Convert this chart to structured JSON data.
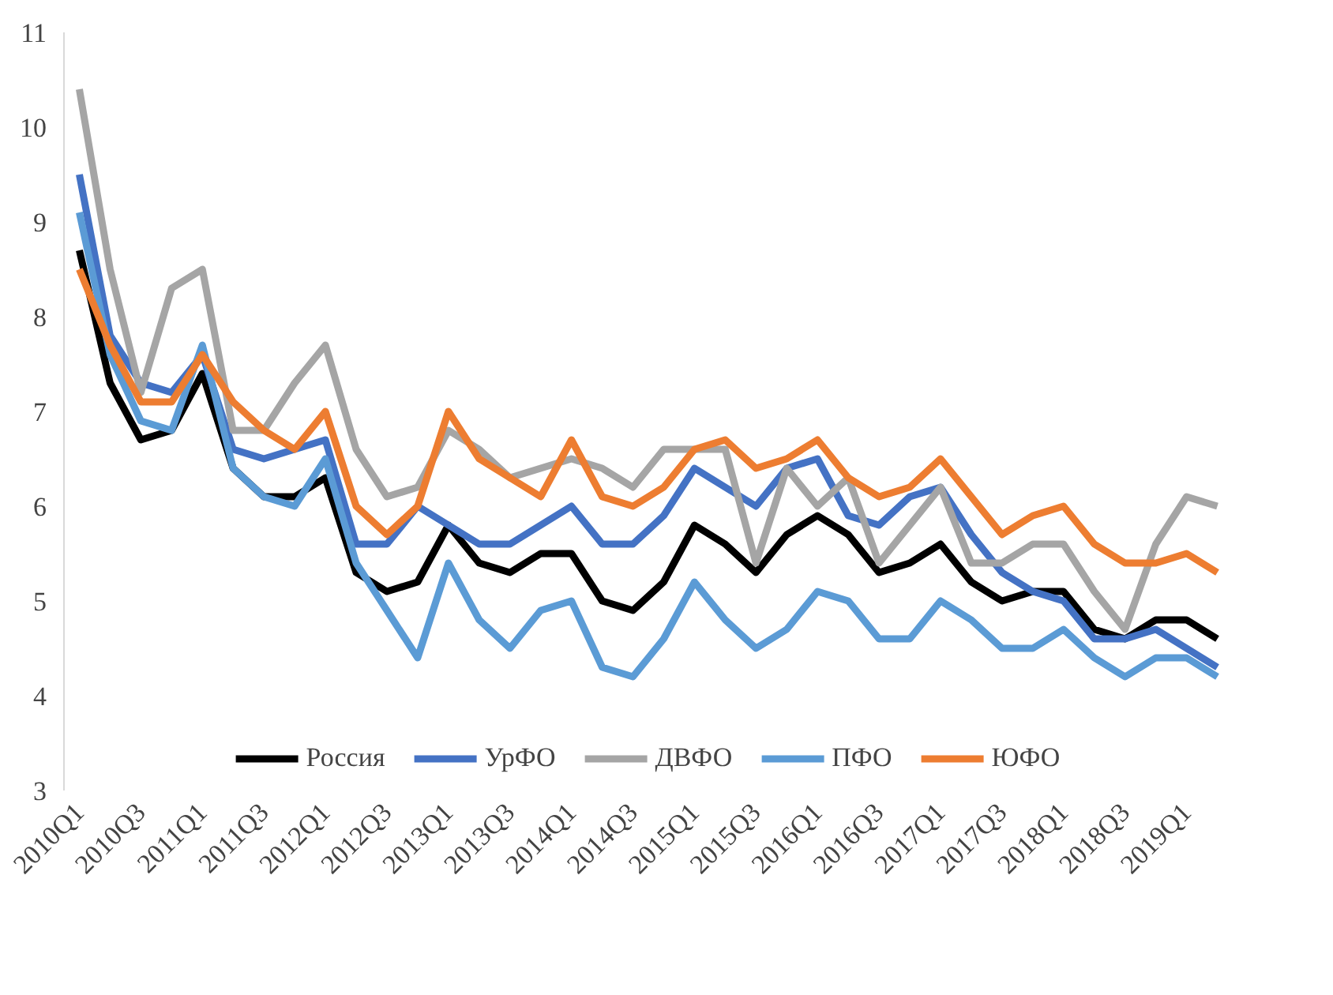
{
  "chart_data": {
    "type": "line",
    "categories": [
      "2010Q1",
      null,
      "2010Q3",
      null,
      "2011Q1",
      null,
      "2011Q3",
      null,
      "2012Q1",
      null,
      "2012Q3",
      null,
      "2013Q1",
      null,
      "2013Q3",
      null,
      "2014Q1",
      null,
      "2014Q3",
      null,
      "2015Q1",
      null,
      "2015Q3",
      null,
      "2016Q1",
      null,
      "2016Q3",
      null,
      "2017Q1",
      null,
      "2017Q3",
      null,
      "2018Q1",
      null,
      "2018Q3",
      null,
      "2019Q1",
      null
    ],
    "ylim": [
      3,
      11
    ],
    "yticks": [
      3,
      4,
      5,
      6,
      7,
      8,
      9,
      10,
      11
    ],
    "grid": false,
    "legend": "bottom",
    "marker": "none",
    "line_style": "solid",
    "series": [
      {
        "name": "Россия",
        "color": "#000000",
        "values": [
          8.7,
          7.3,
          6.7,
          6.8,
          7.4,
          6.4,
          6.1,
          6.1,
          6.3,
          5.3,
          5.1,
          5.2,
          5.8,
          5.4,
          5.3,
          5.5,
          5.5,
          5.0,
          4.9,
          5.2,
          5.8,
          5.6,
          5.3,
          5.7,
          5.9,
          5.7,
          5.3,
          5.4,
          5.6,
          5.2,
          5.0,
          5.1,
          5.1,
          4.7,
          4.6,
          4.8,
          4.8,
          4.6
        ]
      },
      {
        "name": "УрФО",
        "color": "#4472c4",
        "values": [
          9.5,
          7.8,
          7.3,
          7.2,
          7.6,
          6.6,
          6.5,
          6.6,
          6.7,
          5.6,
          5.6,
          6.0,
          5.8,
          5.6,
          5.6,
          5.8,
          6.0,
          5.6,
          5.6,
          5.9,
          6.4,
          6.2,
          6.0,
          6.4,
          6.5,
          5.9,
          5.8,
          6.1,
          6.2,
          5.7,
          5.3,
          5.1,
          5.0,
          4.6,
          4.6,
          4.7,
          4.5,
          4.3
        ]
      },
      {
        "name": "ДВФО",
        "color": "#a5a5a5",
        "values": [
          10.4,
          8.5,
          7.2,
          8.3,
          8.5,
          6.8,
          6.8,
          7.3,
          7.7,
          6.6,
          6.1,
          6.2,
          6.8,
          6.6,
          6.3,
          6.4,
          6.5,
          6.4,
          6.2,
          6.6,
          6.6,
          6.6,
          5.4,
          6.4,
          6.0,
          6.3,
          5.4,
          5.8,
          6.2,
          5.4,
          5.4,
          5.6,
          5.6,
          5.1,
          4.7,
          5.6,
          6.1,
          6.0
        ]
      },
      {
        "name": "ПФО",
        "color": "#5b9bd5",
        "values": [
          9.1,
          7.6,
          6.9,
          6.8,
          7.7,
          6.4,
          6.1,
          6.0,
          6.5,
          5.4,
          4.9,
          4.4,
          5.4,
          4.8,
          4.5,
          4.9,
          5.0,
          4.3,
          4.2,
          4.6,
          5.2,
          4.8,
          4.5,
          4.7,
          5.1,
          5.0,
          4.6,
          4.6,
          5.0,
          4.8,
          4.5,
          4.5,
          4.7,
          4.4,
          4.2,
          4.4,
          4.4,
          4.2
        ]
      },
      {
        "name": "ЮФО",
        "color": "#ed7d31",
        "values": [
          8.5,
          7.7,
          7.1,
          7.1,
          7.6,
          7.1,
          6.8,
          6.6,
          7.0,
          6.0,
          5.7,
          6.0,
          7.0,
          6.5,
          6.3,
          6.1,
          6.7,
          6.1,
          6.0,
          6.2,
          6.6,
          6.7,
          6.4,
          6.5,
          6.7,
          6.3,
          6.1,
          6.2,
          6.5,
          6.1,
          5.7,
          5.9,
          6.0,
          5.6,
          5.4,
          5.4,
          5.5,
          5.3
        ]
      }
    ]
  }
}
